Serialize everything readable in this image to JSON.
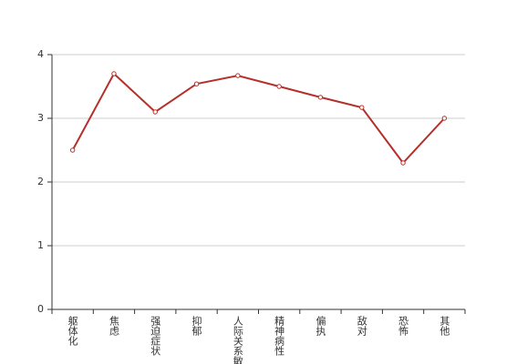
{
  "chart_data": {
    "type": "line",
    "categories": [
      "躯体化",
      "焦虑",
      "强迫症状",
      "抑郁",
      "人际关系敏感",
      "精神病性",
      "偏执",
      "敌对",
      "恐怖",
      "其他"
    ],
    "series": [
      {
        "color": "#b5302a",
        "values": [
          2.5,
          3.7,
          3.1,
          3.54,
          3.67,
          3.5,
          3.33,
          3.17,
          2.3,
          3.0
        ]
      }
    ],
    "ylim": [
      0,
      4
    ],
    "yticks": [
      0,
      1,
      2,
      3,
      4
    ],
    "grid": true
  }
}
